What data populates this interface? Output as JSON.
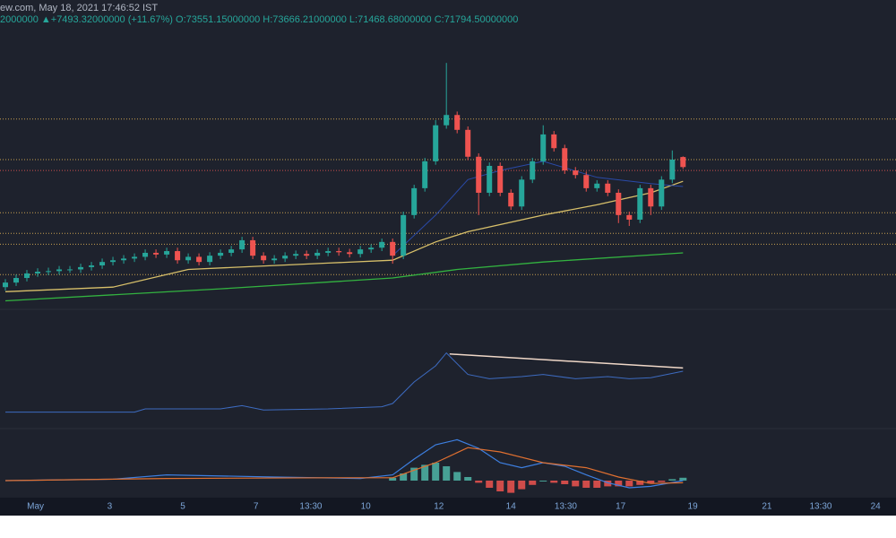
{
  "header": {
    "line1": "ew.com, May 18, 2021 17:46:52 IST",
    "line2": "2000000 ▲+7493.32000000 (+11.67%) O:73551.15000000 H:73666.21000000 L:71468.68000000 C:71794.50000000"
  },
  "chart_data": {
    "type": "candlestick",
    "up_color": "#26a69a",
    "down_color": "#ef5350",
    "xlim": [
      -0.5,
      82.8
    ],
    "ylim": [
      47700,
      96300
    ],
    "xticks": [
      {
        "value": 2.8,
        "label": "May"
      },
      {
        "value": 9.7,
        "label": "3"
      },
      {
        "value": 16.5,
        "label": "5"
      },
      {
        "value": 23.3,
        "label": "7"
      },
      {
        "value": 28.4,
        "label": "13:30"
      },
      {
        "value": 33.5,
        "label": "10"
      },
      {
        "value": 40.3,
        "label": "12"
      },
      {
        "value": 47,
        "label": "14"
      },
      {
        "value": 52.1,
        "label": "13:30"
      },
      {
        "value": 57.2,
        "label": "17"
      },
      {
        "value": 63.9,
        "label": "19"
      },
      {
        "value": 70.8,
        "label": "21"
      },
      {
        "value": 75.8,
        "label": "13:30"
      },
      {
        "value": 80.9,
        "label": "24"
      }
    ],
    "levels": [
      {
        "value": 80200,
        "color": "#c8a050"
      },
      {
        "value": 73100,
        "color": "#c8a050"
      },
      {
        "value": 71200,
        "color": "#d05050"
      },
      {
        "value": 63800,
        "color": "#c8a050"
      },
      {
        "value": 60200,
        "color": "#c8a050"
      },
      {
        "value": 58300,
        "color": "#c8a050"
      },
      {
        "value": 53000,
        "color": "#c8a050"
      }
    ],
    "candles": [
      [
        50800,
        52200,
        50200,
        51600
      ],
      [
        51600,
        53000,
        51000,
        52400
      ],
      [
        52400,
        53800,
        51800,
        53200
      ],
      [
        53200,
        54100,
        52600,
        53500
      ],
      [
        53500,
        54200,
        52900,
        53600
      ],
      [
        53600,
        54500,
        53000,
        53900
      ],
      [
        53900,
        54500,
        53300,
        53900
      ],
      [
        53900,
        54900,
        53300,
        54300
      ],
      [
        54300,
        55200,
        53700,
        54600
      ],
      [
        54600,
        55800,
        54000,
        55200
      ],
      [
        55200,
        56100,
        54600,
        55500
      ],
      [
        55500,
        56400,
        54900,
        55800
      ],
      [
        55800,
        56700,
        55200,
        56100
      ],
      [
        56100,
        57400,
        55500,
        56800
      ],
      [
        56800,
        57400,
        55900,
        56500
      ],
      [
        56500,
        57700,
        55900,
        57100
      ],
      [
        57100,
        57700,
        54900,
        55500
      ],
      [
        55500,
        56700,
        54900,
        56100
      ],
      [
        56100,
        56700,
        54600,
        55200
      ],
      [
        55200,
        56900,
        54600,
        56300
      ],
      [
        56300,
        57400,
        55700,
        56800
      ],
      [
        56800,
        58000,
        56200,
        57400
      ],
      [
        57400,
        59600,
        56800,
        59000
      ],
      [
        59000,
        59600,
        55700,
        56300
      ],
      [
        56300,
        56900,
        54900,
        55500
      ],
      [
        55500,
        56400,
        54900,
        55800
      ],
      [
        55800,
        56900,
        55200,
        56300
      ],
      [
        56300,
        57200,
        55700,
        56600
      ],
      [
        56600,
        57200,
        55700,
        56300
      ],
      [
        56300,
        57400,
        55700,
        56800
      ],
      [
        56800,
        57700,
        56200,
        57100
      ],
      [
        57100,
        57700,
        56300,
        56900
      ],
      [
        56900,
        57500,
        56000,
        56600
      ],
      [
        56600,
        58000,
        56000,
        57400
      ],
      [
        57400,
        58300,
        56800,
        57700
      ],
      [
        57700,
        59300,
        57100,
        58700
      ],
      [
        58700,
        59300,
        54900,
        56300
      ],
      [
        56300,
        64000,
        55700,
        63400
      ],
      [
        63400,
        68700,
        62800,
        68100
      ],
      [
        68100,
        73400,
        67500,
        72800
      ],
      [
        72800,
        80000,
        72200,
        79100
      ],
      [
        79100,
        90000,
        78500,
        80900
      ],
      [
        80900,
        81500,
        77700,
        78300
      ],
      [
        78300,
        78900,
        73000,
        73600
      ],
      [
        73600,
        74200,
        63400,
        67300
      ],
      [
        67300,
        72600,
        66700,
        72000
      ],
      [
        72000,
        72600,
        66700,
        67300
      ],
      [
        67300,
        67900,
        64300,
        64900
      ],
      [
        64900,
        70200,
        64300,
        69600
      ],
      [
        69600,
        73400,
        69000,
        72800
      ],
      [
        72800,
        79100,
        72200,
        77500
      ],
      [
        77500,
        78100,
        74500,
        75100
      ],
      [
        75100,
        75700,
        70600,
        71200
      ],
      [
        71200,
        71800,
        69800,
        70400
      ],
      [
        70400,
        71000,
        67500,
        68100
      ],
      [
        68100,
        69500,
        67500,
        68900
      ],
      [
        68900,
        69500,
        66700,
        67300
      ],
      [
        67300,
        67900,
        62000,
        63400
      ],
      [
        63400,
        64000,
        61500,
        62600
      ],
      [
        62600,
        68700,
        62000,
        68100
      ],
      [
        68100,
        68700,
        63400,
        64900
      ],
      [
        64900,
        70200,
        64300,
        69600
      ],
      [
        69600,
        74700,
        69000,
        73100
      ],
      [
        73551.15,
        73666.21,
        71468.68,
        71794.5
      ]
    ],
    "lines": [
      {
        "color": "#d8c06a",
        "x": [
          0,
          10,
          17,
          30,
          36,
          40,
          43,
          50,
          55,
          60,
          63
        ],
        "values": [
          50000,
          50800,
          53900,
          55000,
          55500,
          58700,
          60500,
          63400,
          65200,
          67300,
          69300
        ]
      },
      {
        "color": "#33b340",
        "x": [
          0,
          20,
          36,
          42,
          50,
          63
        ],
        "values": [
          48400,
          50500,
          52400,
          53900,
          55200,
          56800
        ]
      },
      {
        "color": "#2a4aa8",
        "x": [
          36,
          40,
          43,
          46,
          50,
          55,
          60,
          63
        ],
        "values": [
          56300,
          63400,
          69600,
          71200,
          72800,
          70000,
          68900,
          68400
        ]
      }
    ],
    "oscillator": {
      "ylim": [
        0,
        100
      ],
      "color": "#3d6bc0",
      "x": [
        0,
        12,
        13,
        20,
        22,
        24,
        30,
        35,
        36,
        38,
        40,
        41,
        43,
        45,
        48,
        50,
        53,
        56,
        58,
        60,
        63
      ],
      "values": [
        17,
        17,
        20,
        20,
        23,
        19,
        20,
        22,
        25,
        45,
        60,
        72,
        52,
        48,
        50,
        52,
        48,
        50,
        48,
        49,
        55
      ],
      "trendline": {
        "color": "#f0d8c8",
        "x": [
          41.3,
          63
        ],
        "values": [
          71,
          58
        ]
      }
    },
    "macd": {
      "ylim": [
        -30,
        70
      ],
      "lines": [
        {
          "color": "#3d7fe0",
          "x": [
            0,
            10,
            15,
            25,
            33,
            36,
            38,
            40,
            42,
            44,
            46,
            48,
            50,
            52,
            54,
            56,
            58,
            60,
            63
          ],
          "values": [
            0,
            2,
            8,
            5,
            3,
            8,
            30,
            50,
            57,
            45,
            25,
            18,
            25,
            20,
            8,
            -3,
            -10,
            -8,
            0
          ]
        },
        {
          "color": "#e07030",
          "x": [
            0,
            15,
            30,
            36,
            40,
            43,
            46,
            50,
            54,
            57,
            60,
            63
          ],
          "values": [
            0,
            3,
            4,
            4,
            25,
            46,
            40,
            25,
            18,
            5,
            -4,
            -3
          ]
        }
      ],
      "histogram": {
        "x": [
          36,
          37,
          38,
          39,
          40,
          41,
          42,
          43,
          44,
          45,
          46,
          47,
          48,
          49,
          50,
          51,
          52,
          53,
          54,
          55,
          56,
          57,
          58,
          59,
          60,
          61,
          62,
          63
        ],
        "values": [
          4,
          10,
          18,
          22,
          25,
          20,
          12,
          5,
          -3,
          -10,
          -15,
          -17,
          -12,
          -6,
          0,
          -3,
          -5,
          -8,
          -10,
          -10,
          -8,
          -8,
          -8,
          -6,
          -4,
          -2,
          2,
          4
        ]
      }
    }
  }
}
